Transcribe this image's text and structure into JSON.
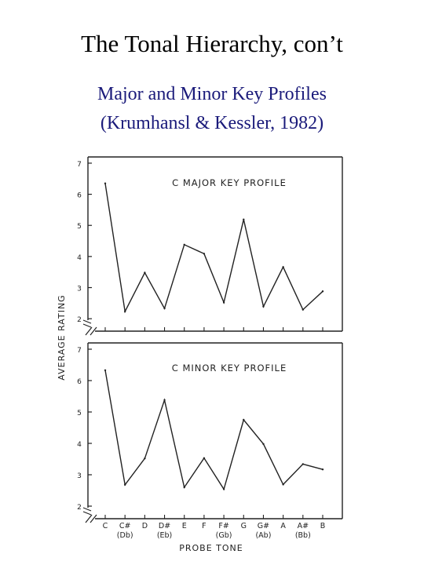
{
  "slide": {
    "title": "The Tonal Hierarchy, con’t",
    "subtitle_line1": "Major and Minor Key Profiles",
    "subtitle_line2": "(Krumhansl & Kessler, 1982)"
  },
  "colors": {
    "title": "#000000",
    "subtitle": "#1a1a7a",
    "line": "#222222"
  },
  "figure": {
    "ylabel": "AVERAGE RATING",
    "xlabel": "PROBE TONE",
    "x_ticks": [
      "C",
      "C#",
      "D",
      "D#",
      "E",
      "F",
      "F#",
      "G",
      "G#",
      "A",
      "A#",
      "B"
    ],
    "x_ticks_alt": [
      "",
      "(Db)",
      "",
      "(Eb)",
      "",
      "",
      "(Gb)",
      "",
      "(Ab)",
      "",
      "(Bb)",
      ""
    ]
  },
  "chart_data": [
    {
      "type": "line",
      "title": "C MAJOR KEY PROFILE",
      "categories": [
        "C",
        "C#",
        "D",
        "D#",
        "E",
        "F",
        "F#",
        "G",
        "G#",
        "A",
        "A#",
        "B"
      ],
      "values": [
        6.35,
        2.23,
        3.48,
        2.33,
        4.38,
        4.09,
        2.52,
        5.19,
        2.39,
        3.66,
        2.29,
        2.88
      ],
      "ylim": [
        1.6,
        7.2
      ],
      "yticks": [
        2,
        3,
        4,
        5,
        6,
        7
      ],
      "grid": false
    },
    {
      "type": "line",
      "title": "C MINOR KEY PROFILE",
      "categories": [
        "C",
        "C#",
        "D",
        "D#",
        "E",
        "F",
        "F#",
        "G",
        "G#",
        "A",
        "A#",
        "B"
      ],
      "values": [
        6.33,
        2.68,
        3.52,
        5.38,
        2.6,
        3.53,
        2.54,
        4.75,
        3.98,
        2.69,
        3.34,
        3.17
      ],
      "ylim": [
        1.6,
        7.2
      ],
      "yticks": [
        2,
        3,
        4,
        5,
        6,
        7
      ],
      "grid": false
    }
  ]
}
